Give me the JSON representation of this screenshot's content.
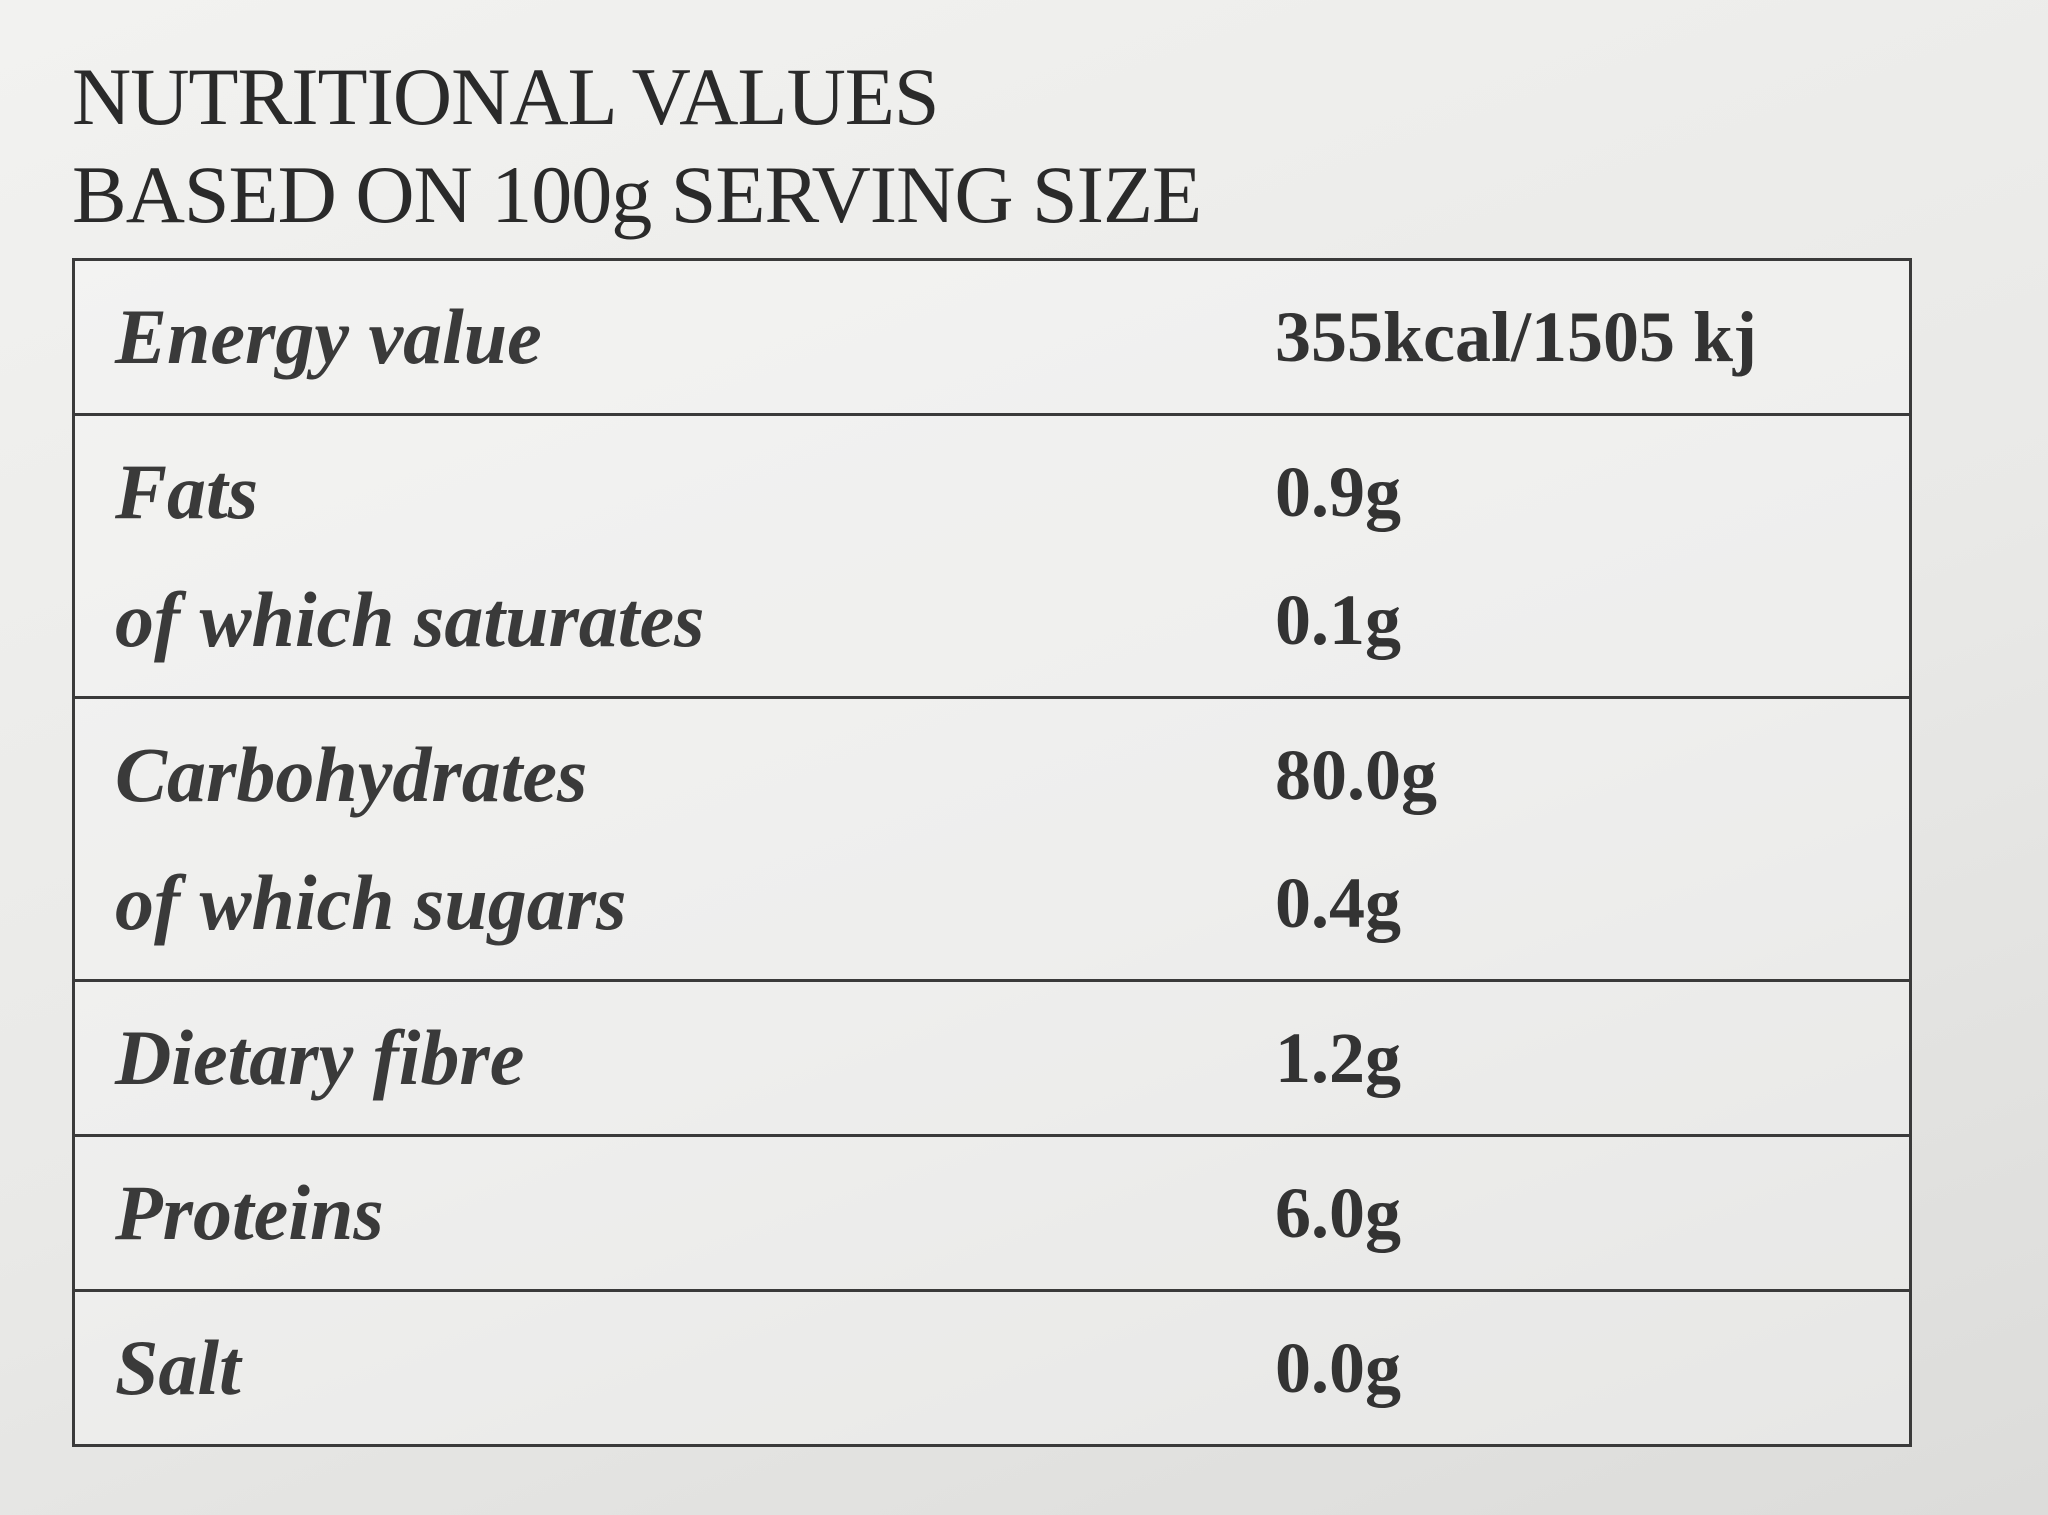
{
  "header": {
    "title": "NUTRITIONAL VALUES",
    "subtitle": "BASED ON 100g SERVING SIZE"
  },
  "table": {
    "sections": [
      [
        {
          "label": "Energy value",
          "value": "355kcal/1505 kj"
        }
      ],
      [
        {
          "label": "Fats",
          "value": "0.9g"
        },
        {
          "label": "of which saturates",
          "value": "0.1g"
        }
      ],
      [
        {
          "label": "Carbohydrates",
          "value": "80.0g"
        },
        {
          "label": "of which sugars",
          "value": "0.4g"
        }
      ],
      [
        {
          "label": "Dietary fibre",
          "value": "1.2g"
        }
      ],
      [
        {
          "label": "Proteins",
          "value": "6.0g"
        }
      ],
      [
        {
          "label": "Salt",
          "value": "0.0g"
        }
      ]
    ]
  }
}
